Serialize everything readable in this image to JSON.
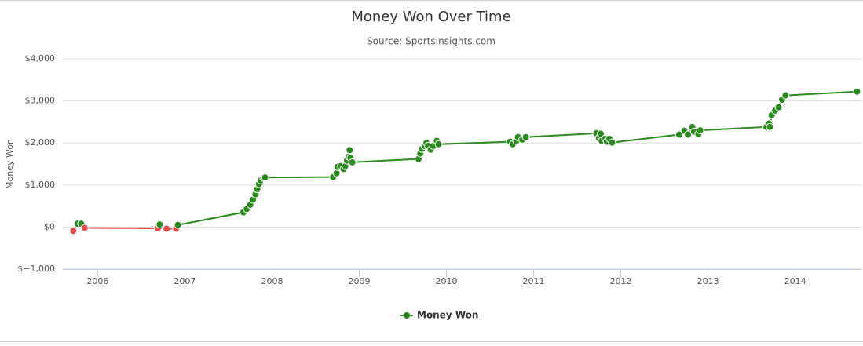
{
  "chart_data": {
    "type": "line",
    "title": "Money Won Over Time",
    "subtitle": "Source: SportsInsights.com",
    "y_label": "Money Won",
    "xlim": [
      2005.6,
      2014.76
    ],
    "xticks": [
      2006,
      2007,
      2008,
      2009,
      2010,
      2011,
      2012,
      2013,
      2014
    ],
    "ylim": [
      -1000,
      4000
    ],
    "yticks": [
      {
        "value": -1000,
        "label": "$−1,000"
      },
      {
        "value": 0,
        "label": "$0"
      },
      {
        "value": 1000,
        "label": "$1,000"
      },
      {
        "value": 2000,
        "label": "$2,000"
      },
      {
        "value": 3000,
        "label": "$3,000"
      },
      {
        "value": 4000,
        "label": "$4,000"
      }
    ],
    "grid": true,
    "legend": "bottom",
    "series": [
      {
        "name": "Money Won",
        "color": "#2a8a1e",
        "negative_color": "#e34a4a",
        "x": [
          2005.72,
          2005.77,
          2005.81,
          2005.85,
          2006.69,
          2006.71,
          2006.79,
          2006.9,
          2006.92,
          2007.67,
          2007.71,
          2007.75,
          2007.78,
          2007.81,
          2007.83,
          2007.85,
          2007.87,
          2007.9,
          2007.92,
          2008.7,
          2008.74,
          2008.75,
          2008.79,
          2008.82,
          2008.84,
          2008.86,
          2008.88,
          2008.89,
          2008.9,
          2008.92,
          2009.68,
          2009.7,
          2009.72,
          2009.75,
          2009.77,
          2009.79,
          2009.82,
          2009.85,
          2009.89,
          2009.91,
          2010.73,
          2010.76,
          2010.8,
          2010.82,
          2010.87,
          2010.91,
          2011.72,
          2011.75,
          2011.77,
          2011.78,
          2011.82,
          2011.84,
          2011.87,
          2011.9,
          2012.67,
          2012.73,
          2012.77,
          2012.82,
          2012.84,
          2012.89,
          2012.91,
          2013.67,
          2013.7,
          2013.71,
          2013.73,
          2013.77,
          2013.81,
          2013.85,
          2013.89,
          2014.71
        ],
        "values": [
          -90,
          80,
          80,
          -20,
          -30,
          60,
          -40,
          -40,
          50,
          350,
          430,
          530,
          650,
          780,
          900,
          1020,
          1110,
          1170,
          1180,
          1190,
          1280,
          1430,
          1450,
          1380,
          1450,
          1580,
          1670,
          1830,
          1650,
          1540,
          1620,
          1750,
          1860,
          1930,
          2000,
          1930,
          1840,
          1930,
          2050,
          1970,
          2030,
          1970,
          2050,
          2140,
          2080,
          2140,
          2230,
          2120,
          2220,
          2050,
          2100,
          2030,
          2100,
          2010,
          2200,
          2290,
          2200,
          2380,
          2270,
          2210,
          2300,
          2380,
          2460,
          2380,
          2660,
          2770,
          2850,
          3030,
          3130,
          3220
        ]
      }
    ]
  }
}
